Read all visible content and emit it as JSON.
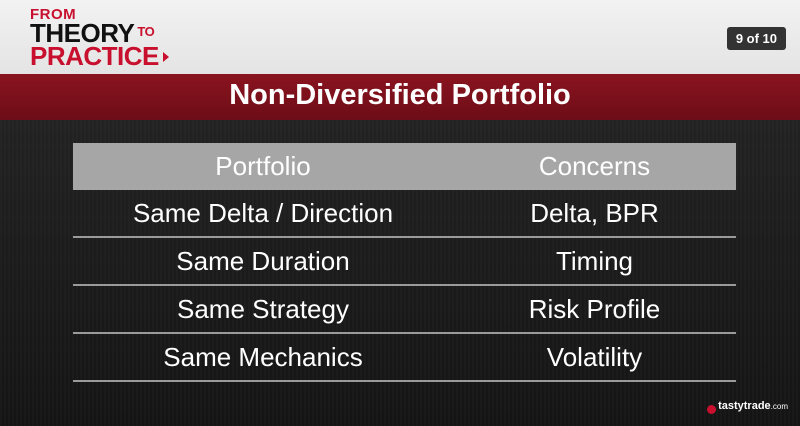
{
  "logo": {
    "line1": "FROM",
    "line2": "THEORY",
    "line2_to": "TO",
    "line3": "PRACTICE"
  },
  "pager": "9 of 10",
  "title": "Non-Diversified Portfolio",
  "table": {
    "headers": [
      "Portfolio",
      "Concerns"
    ],
    "rows": [
      [
        "Same Delta / Direction",
        "Delta, BPR"
      ],
      [
        "Same Duration",
        "Timing"
      ],
      [
        "Same Strategy",
        "Risk Profile"
      ],
      [
        "Same Mechanics",
        "Volatility"
      ]
    ]
  },
  "brand": {
    "name": "tastytrade",
    "suffix": ".com"
  },
  "colors": {
    "accent": "#c8102e",
    "title_bar": "#7a0f1b",
    "table_header": "#a6a6a6"
  },
  "icons": {
    "play_arrow": "triangle-right",
    "brand_mark": "cherry"
  }
}
